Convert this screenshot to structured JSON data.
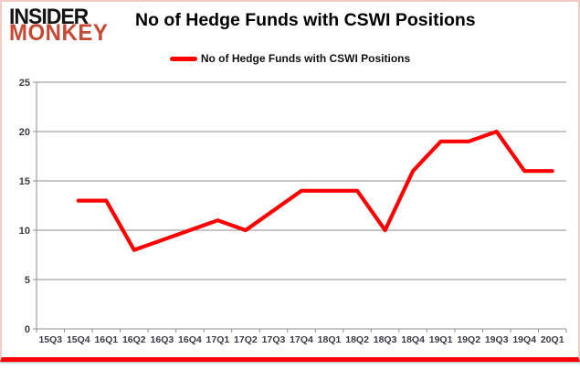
{
  "logo": {
    "line1": "INSIDER",
    "line2": "MONKEY"
  },
  "header": {
    "title": "No of Hedge Funds with CSWI Positions"
  },
  "legend": {
    "label": "No of Hedge Funds with CSWI Positions"
  },
  "colors": {
    "line": "#fe0000",
    "logo_black": "#141414",
    "logo_red": "#c64936",
    "grid": "#8e8e8e",
    "label": "#3a3a42",
    "title": "#000000",
    "frame_pink": "#f5cac4",
    "bottom_bar": "#fb0007"
  },
  "chart_data": {
    "type": "line",
    "title": "No of Hedge Funds with CSWI Positions",
    "categories": [
      "15Q3",
      "15Q4",
      "16Q1",
      "16Q2",
      "16Q3",
      "16Q4",
      "17Q1",
      "17Q2",
      "17Q3",
      "17Q4",
      "18Q1",
      "18Q2",
      "18Q3",
      "18Q4",
      "19Q1",
      "19Q2",
      "19Q3",
      "19Q4",
      "20Q1"
    ],
    "series": [
      {
        "name": "No of Hedge Funds with CSWI Positions",
        "color": "#fe0000",
        "values": [
          null,
          13,
          13,
          8,
          9,
          10,
          11,
          10,
          12,
          14,
          14,
          14,
          10,
          16,
          19,
          19,
          20,
          16,
          16
        ]
      }
    ],
    "xlabel": "",
    "ylabel": "",
    "ylim": [
      0,
      25
    ],
    "yticks": [
      0,
      5,
      10,
      15,
      20,
      25
    ],
    "grid": "horizontal",
    "legend_position": "top-center"
  }
}
